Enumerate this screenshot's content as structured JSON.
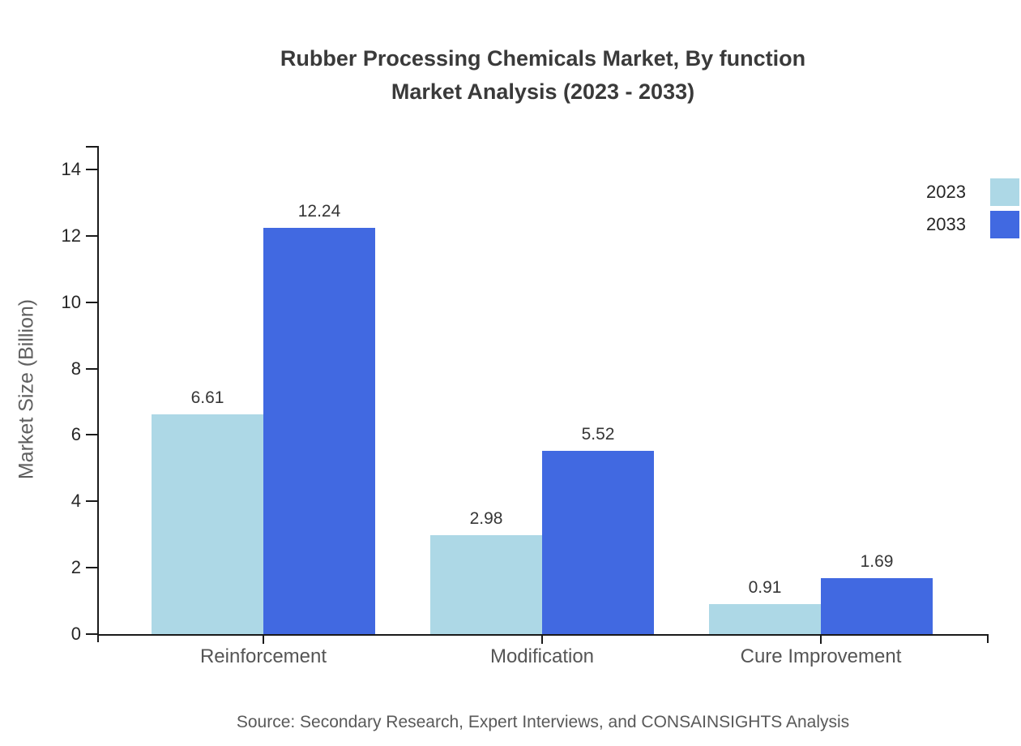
{
  "title": {
    "line1": "Rubber Processing Chemicals Market, By function",
    "line2": "Market Analysis (2023 - 2033)"
  },
  "source": "Source: Secondary Research, Expert Interviews, and CONSAINSIGHTS Analysis",
  "chart_data": {
    "type": "bar",
    "title": "Rubber Processing Chemicals Market, By function Market Analysis (2023 - 2033)",
    "categories": [
      "Reinforcement",
      "Modification",
      "Cure Improvement"
    ],
    "series": [
      {
        "name": "2023",
        "color": "#ADD8E6",
        "values": [
          6.61,
          2.98,
          0.91
        ]
      },
      {
        "name": "2033",
        "color": "#4169E1",
        "values": [
          12.24,
          5.52,
          1.69
        ]
      }
    ],
    "xlabel": "",
    "ylabel": "Market Size (Billion)",
    "ylim": [
      0,
      14
    ],
    "yticks": [
      0,
      2,
      4,
      6,
      8,
      10,
      12,
      14
    ],
    "grid": false,
    "legend_position": "top-right",
    "value_labels": true,
    "axis_color": "#1a1a1a"
  }
}
